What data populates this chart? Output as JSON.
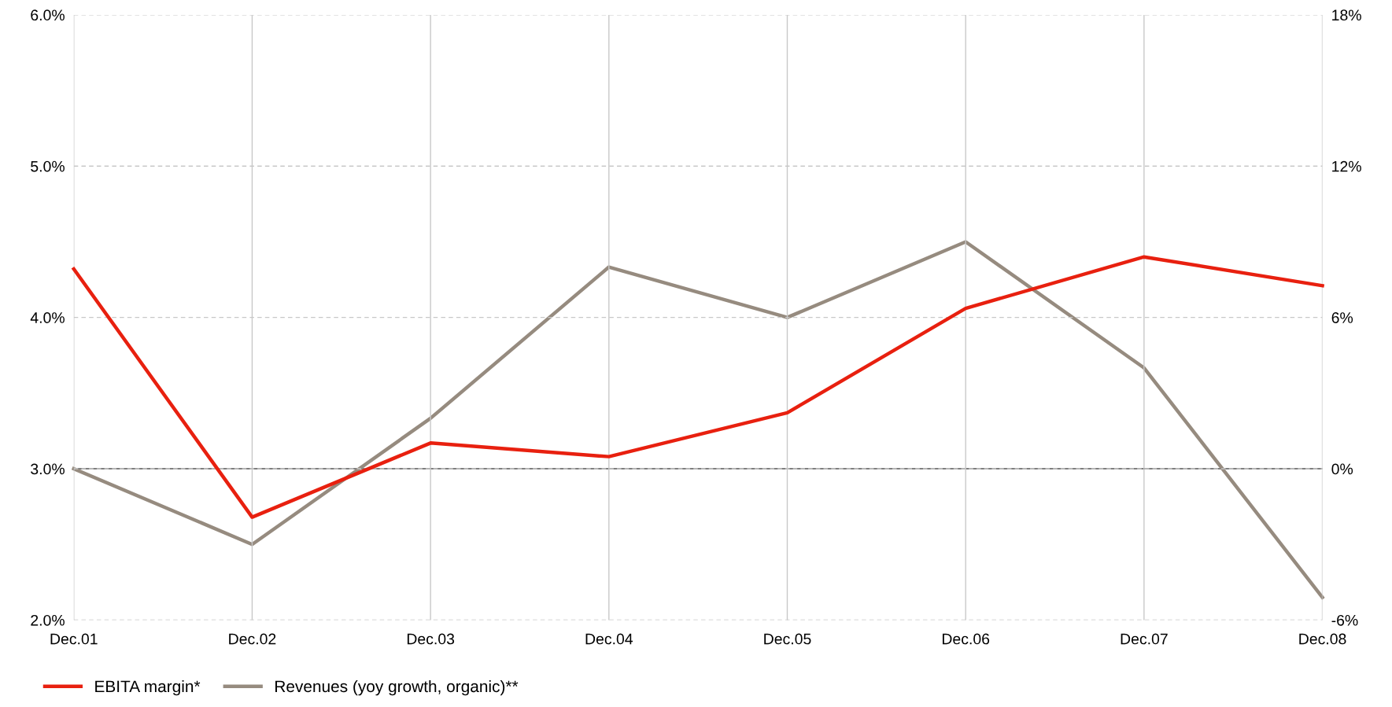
{
  "chart_data": {
    "type": "line",
    "categories": [
      "Dec.01",
      "Dec.02",
      "Dec.03",
      "Dec.04",
      "Dec.05",
      "Dec.06",
      "Dec.07",
      "Dec.08"
    ],
    "series": [
      {
        "name": "EBITA margin*",
        "color": "#e8200f",
        "values": [
          4.32,
          2.68,
          3.17,
          3.08,
          3.37,
          4.06,
          4.4,
          4.21
        ]
      },
      {
        "name": "Revenues (yoy growth, organic)**",
        "color": "#968b7f",
        "axis": "y2",
        "values": [
          0,
          -3.0,
          2.0,
          8.0,
          6.0,
          9.0,
          4.0,
          -5.1
        ]
      }
    ],
    "ylim": [
      2.0,
      6.0
    ],
    "yticks": [
      {
        "value": 2.0,
        "label": "2.0%"
      },
      {
        "value": 3.0,
        "label": "3.0%"
      },
      {
        "value": 4.0,
        "label": "4.0%"
      },
      {
        "value": 5.0,
        "label": "5.0%"
      },
      {
        "value": 6.0,
        "label": "6.0%"
      }
    ],
    "y2lim": [
      -6,
      18
    ],
    "y2ticks": [
      {
        "value": -6,
        "label": "-6%"
      },
      {
        "value": 0,
        "label": "0%"
      },
      {
        "value": 6,
        "label": "6%"
      },
      {
        "value": 12,
        "label": "12%"
      },
      {
        "value": 18,
        "label": "18%"
      }
    ],
    "ref_lines": [
      {
        "axis": "y2",
        "value": 0,
        "color": "#000000"
      }
    ],
    "grid": true,
    "legend": "bottom left",
    "line_style": "solid",
    "marker": "none"
  }
}
